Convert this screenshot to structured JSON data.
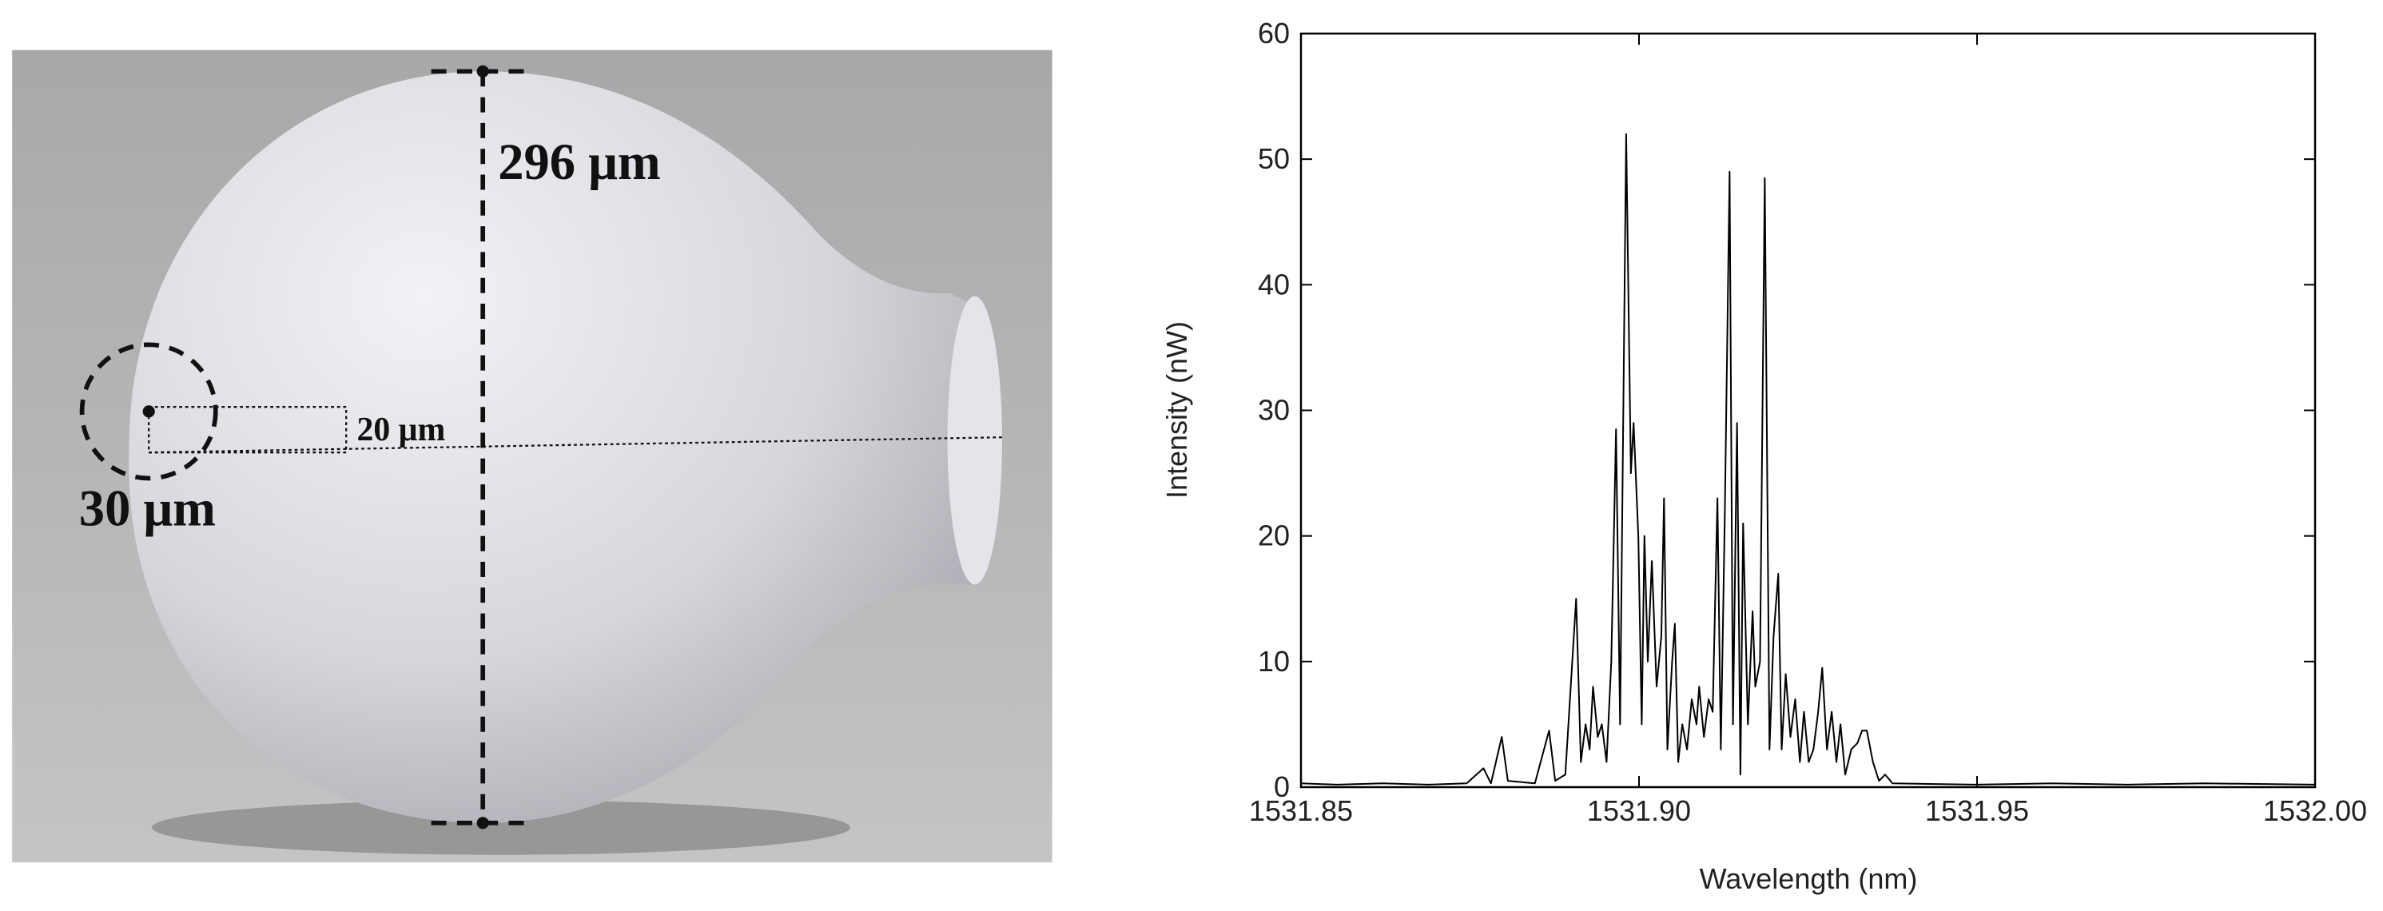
{
  "figure": {
    "annotations": [
      "296 μm",
      "20 μm",
      "30 μm"
    ]
  },
  "chart_data": {
    "type": "line",
    "xlabel": "Wavelength (nm)",
    "ylabel": "Intensity (nW)",
    "color": "#000000",
    "xlim": [
      1531.85,
      1532.0
    ],
    "ylim": [
      0,
      60
    ],
    "xticks": [
      1531.85,
      {
        "value": 1531.9,
        "label": "1531.90"
      },
      1531.95,
      {
        "value": 1532.0,
        "label": "1532.00"
      }
    ],
    "yticks": [
      0,
      10,
      20,
      30,
      40,
      50,
      60
    ],
    "x": [
      1531.85,
      1531.8554,
      1531.8621,
      1531.8689,
      1531.8745,
      1531.877,
      1531.8781,
      1531.8797,
      1531.8806,
      1531.8846,
      1531.8867,
      1531.8876,
      1531.8891,
      1531.8907,
      1531.8914,
      1531.8921,
      1531.8927,
      1531.8932,
      1531.8939,
      1531.8945,
      1531.8952,
      1531.8959,
      1531.8966,
      1531.8972,
      1531.8981,
      1531.8988,
      1531.8992,
      1531.8999,
      1531.9004,
      1531.9008,
      1531.9013,
      1531.9019,
      1531.9026,
      1531.9033,
      1531.9037,
      1531.9042,
      1531.9049,
      1531.9053,
      1531.9058,
      1531.9064,
      1531.9071,
      1531.9078,
      1531.9085,
      1531.9089,
      1531.9096,
      1531.9103,
      1531.9109,
      1531.9116,
      1531.9121,
      1531.9127,
      1531.9134,
      1531.9139,
      1531.9145,
      1531.915,
      1531.9154,
      1531.9161,
      1531.9168,
      1531.9172,
      1531.9179,
      1531.9186,
      1531.9193,
      1531.9199,
      1531.9206,
      1531.9211,
      1531.9217,
      1531.9224,
      1531.9231,
      1531.9238,
      1531.9244,
      1531.9251,
      1531.9258,
      1531.9265,
      1531.9271,
      1531.9278,
      1531.9285,
      1531.9292,
      1531.9298,
      1531.9305,
      1531.9314,
      1531.9323,
      1531.933,
      1531.9337,
      1531.9346,
      1531.9355,
      1531.9364,
      1531.9375,
      1531.9498,
      1531.9611,
      1531.9723,
      1531.9836,
      1532.0
    ],
    "values": [
      0.3,
      0.2,
      0.3,
      0.2,
      0.3,
      1.5,
      0.3,
      4,
      0.5,
      0.3,
      4.5,
      0.5,
      1,
      15,
      2,
      5,
      3,
      8,
      4,
      5,
      2,
      10,
      28.5,
      5,
      52,
      25,
      29,
      20,
      5,
      20,
      10,
      18,
      8,
      12,
      23,
      3,
      10,
      13,
      2,
      5,
      3,
      7,
      5,
      8,
      4,
      7,
      6,
      23,
      3,
      22,
      49,
      5,
      29,
      1,
      21,
      5,
      14,
      8,
      10,
      48.5,
      3,
      12,
      17,
      3,
      9,
      4,
      7,
      2,
      6,
      2,
      3,
      6,
      9.5,
      3,
      6,
      2,
      5,
      1,
      3,
      3.5,
      4.5,
      4.5,
      2,
      0.5,
      1,
      0.3,
      0.2,
      0.3,
      0.2,
      0.3,
      0.2
    ]
  }
}
